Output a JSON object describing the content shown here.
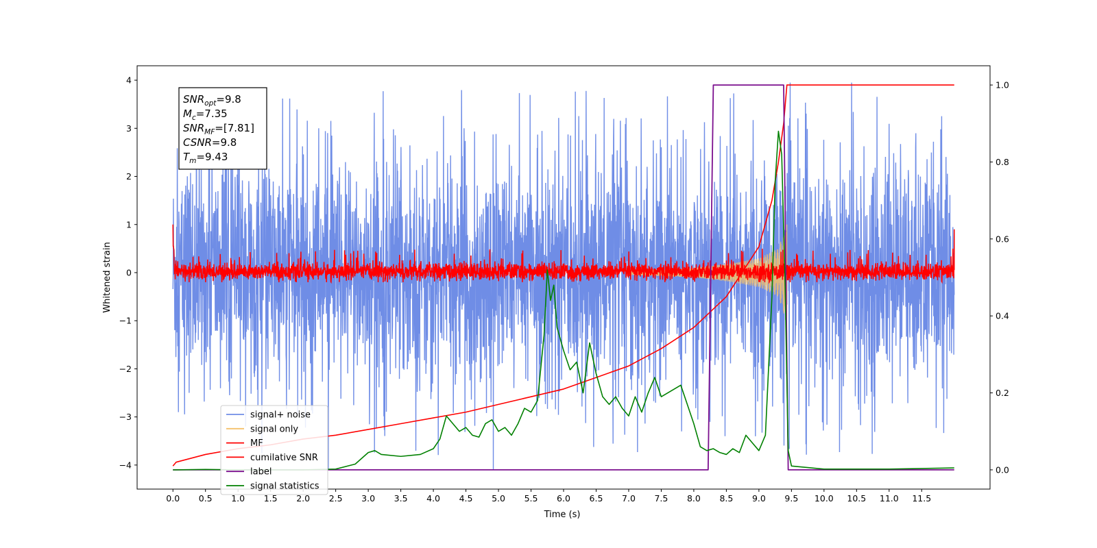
{
  "chart_data": {
    "type": "line",
    "xlabel": "Time (s)",
    "ylabel": "Whitened strain",
    "xlim": [
      -0.55,
      12.55
    ],
    "ylim": [
      -4.5,
      4.3
    ],
    "y2lim": [
      -0.05,
      1.05
    ],
    "x_ticks": [
      0.0,
      0.5,
      1.0,
      1.5,
      2.0,
      2.5,
      3.0,
      3.5,
      4.0,
      4.5,
      5.0,
      5.5,
      6.0,
      6.5,
      7.0,
      7.5,
      8.0,
      8.5,
      9.0,
      9.5,
      10.0,
      10.5,
      11.0,
      11.5
    ],
    "x_tick_labels": [
      "0.0",
      "0.5",
      "1.0",
      "1.5",
      "2.0",
      "2.5",
      "3.0",
      "3.5",
      "4.0",
      "4.5",
      "5.0",
      "5.5",
      "6.0",
      "6.5",
      "7.0",
      "7.5",
      "8.0",
      "8.5",
      "9.0",
      "9.5",
      "10.0",
      "10.5",
      "11.0",
      "11.5"
    ],
    "y_ticks": [
      4,
      3,
      2,
      1,
      0,
      -1,
      -2,
      -3,
      -4
    ],
    "y_tick_labels": [
      "4",
      "3",
      "2",
      "1",
      "0",
      "−1",
      "−2",
      "−3",
      "−4"
    ],
    "y2_ticks": [
      1.0,
      0.8,
      0.6,
      0.4,
      0.2,
      0.0
    ],
    "y2_tick_labels": [
      "1.0",
      "0.8",
      "0.6",
      "0.4",
      "0.2",
      "0.0"
    ],
    "grid": false,
    "legend_position": "lower-left",
    "annotation": {
      "lines": [
        {
          "base": "SNR",
          "sub": "opt",
          "rest": "=9.8"
        },
        {
          "base": "M",
          "sub": "c",
          "rest": "=7.35"
        },
        {
          "base": "SNR",
          "sub": "MF",
          "rest": "=[7.81]"
        },
        {
          "base": "CSNR",
          "sub": "",
          "rest": "=9.8"
        },
        {
          "base": "T",
          "sub": "m",
          "rest": "=9.43"
        }
      ]
    },
    "series": [
      {
        "name": "signal+ noise",
        "axis": "left",
        "color": "#6f8de6",
        "kind": "noise-band",
        "x_range": [
          0.0,
          12.0
        ],
        "typical_amplitude": 1.3,
        "peak_max": 3.95,
        "peak_min": -4.1
      },
      {
        "name": "signal only",
        "axis": "left",
        "color": "#f5c16a",
        "kind": "chirp-envelope",
        "start": 7.0,
        "end": 9.43,
        "envelope": [
          [
            7.0,
            0.05
          ],
          [
            7.5,
            0.07
          ],
          [
            8.0,
            0.1
          ],
          [
            8.5,
            0.18
          ],
          [
            9.0,
            0.3
          ],
          [
            9.3,
            0.5
          ],
          [
            9.43,
            1.05
          ]
        ]
      },
      {
        "name": "MF",
        "axis": "left",
        "color": "#ff0000",
        "kind": "noise-band",
        "x_range": [
          0.0,
          12.0
        ],
        "typical_amplitude": 0.22,
        "peak_max": 0.55,
        "peak_min": -0.2,
        "start_value": 1.0,
        "end_value": 0.9
      },
      {
        "name": "cumilative SNR",
        "axis": "right",
        "color": "#ff0000",
        "points": [
          [
            0.0,
            0.01
          ],
          [
            0.05,
            0.02
          ],
          [
            0.5,
            0.04
          ],
          [
            1.0,
            0.055
          ],
          [
            1.5,
            0.065
          ],
          [
            2.0,
            0.08
          ],
          [
            2.5,
            0.09
          ],
          [
            3.0,
            0.105
          ],
          [
            3.5,
            0.12
          ],
          [
            4.0,
            0.135
          ],
          [
            4.5,
            0.15
          ],
          [
            5.0,
            0.17
          ],
          [
            5.5,
            0.19
          ],
          [
            6.0,
            0.21
          ],
          [
            6.5,
            0.24
          ],
          [
            7.0,
            0.27
          ],
          [
            7.5,
            0.315
          ],
          [
            8.0,
            0.37
          ],
          [
            8.5,
            0.45
          ],
          [
            9.0,
            0.58
          ],
          [
            9.2,
            0.7
          ],
          [
            9.3,
            0.8
          ],
          [
            9.38,
            0.9
          ],
          [
            9.43,
            1.0
          ],
          [
            12.0,
            1.0
          ]
        ]
      },
      {
        "name": "label",
        "axis": "right",
        "color": "#7b0f8e",
        "points": [
          [
            0.0,
            0.0
          ],
          [
            8.22,
            0.0
          ],
          [
            8.3,
            1.0
          ],
          [
            9.38,
            1.0
          ],
          [
            9.45,
            0.0
          ],
          [
            12.0,
            0.0
          ]
        ]
      },
      {
        "name": "signal statistics",
        "axis": "right",
        "color": "#008000",
        "points": [
          [
            0.0,
            0.0
          ],
          [
            0.5,
            0.001
          ],
          [
            1.0,
            0.0
          ],
          [
            1.5,
            0.0
          ],
          [
            2.0,
            0.0
          ],
          [
            2.5,
            0.002
          ],
          [
            2.8,
            0.015
          ],
          [
            3.0,
            0.045
          ],
          [
            3.1,
            0.05
          ],
          [
            3.2,
            0.04
          ],
          [
            3.5,
            0.035
          ],
          [
            3.8,
            0.04
          ],
          [
            4.0,
            0.055
          ],
          [
            4.1,
            0.08
          ],
          [
            4.2,
            0.14
          ],
          [
            4.3,
            0.12
          ],
          [
            4.4,
            0.1
          ],
          [
            4.5,
            0.11
          ],
          [
            4.6,
            0.09
          ],
          [
            4.7,
            0.085
          ],
          [
            4.8,
            0.12
          ],
          [
            4.9,
            0.13
          ],
          [
            5.0,
            0.1
          ],
          [
            5.1,
            0.11
          ],
          [
            5.2,
            0.09
          ],
          [
            5.3,
            0.12
          ],
          [
            5.4,
            0.16
          ],
          [
            5.5,
            0.15
          ],
          [
            5.6,
            0.18
          ],
          [
            5.7,
            0.35
          ],
          [
            5.75,
            0.52
          ],
          [
            5.8,
            0.44
          ],
          [
            5.85,
            0.48
          ],
          [
            5.9,
            0.37
          ],
          [
            6.0,
            0.31
          ],
          [
            6.1,
            0.26
          ],
          [
            6.2,
            0.28
          ],
          [
            6.3,
            0.2
          ],
          [
            6.4,
            0.33
          ],
          [
            6.5,
            0.25
          ],
          [
            6.6,
            0.19
          ],
          [
            6.7,
            0.17
          ],
          [
            6.8,
            0.19
          ],
          [
            6.9,
            0.16
          ],
          [
            7.0,
            0.14
          ],
          [
            7.1,
            0.19
          ],
          [
            7.2,
            0.15
          ],
          [
            7.3,
            0.2
          ],
          [
            7.4,
            0.24
          ],
          [
            7.5,
            0.19
          ],
          [
            7.6,
            0.2
          ],
          [
            7.7,
            0.21
          ],
          [
            7.8,
            0.22
          ],
          [
            7.9,
            0.17
          ],
          [
            8.0,
            0.12
          ],
          [
            8.1,
            0.06
          ],
          [
            8.2,
            0.05
          ],
          [
            8.3,
            0.055
          ],
          [
            8.4,
            0.045
          ],
          [
            8.5,
            0.04
          ],
          [
            8.6,
            0.055
          ],
          [
            8.7,
            0.045
          ],
          [
            8.8,
            0.09
          ],
          [
            8.9,
            0.07
          ],
          [
            9.0,
            0.05
          ],
          [
            9.1,
            0.09
          ],
          [
            9.2,
            0.45
          ],
          [
            9.25,
            0.75
          ],
          [
            9.3,
            0.88
          ],
          [
            9.35,
            0.82
          ],
          [
            9.4,
            0.5
          ],
          [
            9.45,
            0.05
          ],
          [
            9.5,
            0.01
          ],
          [
            10.0,
            0.002
          ],
          [
            11.0,
            0.002
          ],
          [
            12.0,
            0.005
          ]
        ]
      }
    ]
  }
}
